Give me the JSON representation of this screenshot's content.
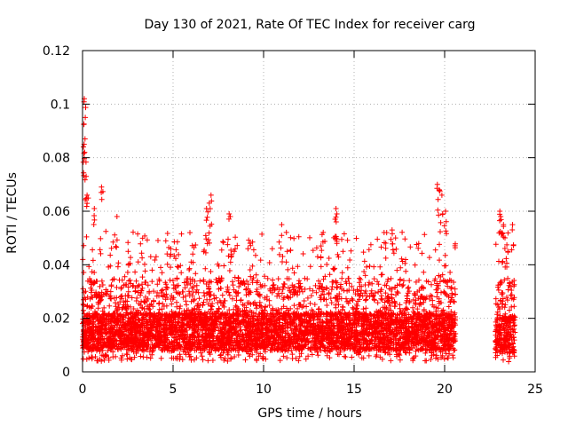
{
  "chart_data": {
    "type": "scatter",
    "title": "Day 130 of 2021, Rate Of TEC Index for receiver carg",
    "xlabel": "GPS time / hours",
    "ylabel": "ROTI / TECUs",
    "xlim": [
      0,
      25
    ],
    "ylim": [
      0,
      0.12
    ],
    "xticks": [
      0,
      5,
      10,
      15,
      20,
      25
    ],
    "xtick_labels": [
      "0",
      "5",
      "10",
      "15",
      "20",
      "25"
    ],
    "yticks": [
      0,
      0.02,
      0.04,
      0.06,
      0.08,
      0.1,
      0.12
    ],
    "ytick_labels": [
      "0",
      "0.02",
      "0.04",
      "0.06",
      "0.08",
      "0.1",
      "0.12"
    ],
    "grid": true,
    "marker": "+",
    "color": "#ff0000",
    "data_segments": [
      {
        "x_start": 0.0,
        "x_end": 20.6,
        "typical_range": [
          0.004,
          0.035
        ],
        "max_spikes": [
          [
            0.1,
            0.102
          ],
          [
            0.15,
            0.095
          ],
          [
            0.05,
            0.084
          ],
          [
            0.12,
            0.082
          ],
          [
            0.2,
            0.073
          ],
          [
            0.25,
            0.066
          ],
          [
            1.05,
            0.069
          ],
          [
            0.65,
            0.061
          ],
          [
            1.9,
            0.058
          ],
          [
            7.1,
            0.066
          ],
          [
            7.0,
            0.063
          ],
          [
            6.85,
            0.061
          ],
          [
            8.1,
            0.059
          ],
          [
            11.0,
            0.055
          ],
          [
            14.0,
            0.061
          ],
          [
            14.05,
            0.059
          ],
          [
            13.95,
            0.057
          ],
          [
            16.8,
            0.052
          ],
          [
            17.1,
            0.053
          ],
          [
            19.6,
            0.07
          ],
          [
            19.7,
            0.068
          ],
          [
            19.85,
            0.066
          ],
          [
            20.05,
            0.06
          ]
        ]
      },
      {
        "x_start": 22.8,
        "x_end": 23.9,
        "typical_range": [
          0.003,
          0.035
        ],
        "max_spikes": [
          [
            23.05,
            0.06
          ],
          [
            23.1,
            0.058
          ],
          [
            23.25,
            0.055
          ],
          [
            23.75,
            0.055
          ],
          [
            23.5,
            0.045
          ]
        ]
      }
    ]
  }
}
